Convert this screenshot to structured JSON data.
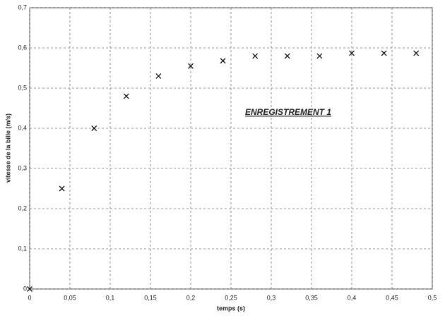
{
  "chart_data": {
    "type": "scatter",
    "annotation": "ENREGISTREMENT 1",
    "xlabel": "temps (s)",
    "ylabel": "vitesse de la bille (m/s)",
    "x": [
      0,
      0.04,
      0.08,
      0.12,
      0.16,
      0.2,
      0.24,
      0.28,
      0.32,
      0.36,
      0.4,
      0.44,
      0.48
    ],
    "values": [
      0,
      0.25,
      0.4,
      0.48,
      0.53,
      0.555,
      0.568,
      0.58,
      0.58,
      0.58,
      0.587,
      0.587,
      0.587
    ],
    "color": "#111111",
    "xlim": [
      0,
      0.5
    ],
    "ylim": [
      0,
      0.7
    ],
    "xticks": [
      0,
      {
        "value": 0.05,
        "label": "0,05"
      },
      {
        "value": 0.1,
        "label": "0,1"
      },
      {
        "value": 0.15,
        "label": "0,15"
      },
      {
        "value": 0.2,
        "label": "0,2"
      },
      {
        "value": 0.25,
        "label": "0,25"
      },
      {
        "value": 0.3,
        "label": "0,3"
      },
      {
        "value": 0.35,
        "label": "0,35"
      },
      {
        "value": 0.4,
        "label": "0,4"
      },
      {
        "value": 0.45,
        "label": "0,45"
      },
      {
        "value": 0.5,
        "label": "0,5"
      }
    ],
    "yticks": [
      0,
      {
        "value": 0.1,
        "label": "0,1"
      },
      {
        "value": 0.2,
        "label": "0,2"
      },
      {
        "value": 0.3,
        "label": "0,3"
      },
      {
        "value": 0.4,
        "label": "0,4"
      },
      {
        "value": 0.5,
        "label": "0,5"
      },
      {
        "value": 0.6,
        "label": "0,6"
      },
      {
        "value": 0.7,
        "label": "0,7"
      }
    ],
    "grid": true
  }
}
